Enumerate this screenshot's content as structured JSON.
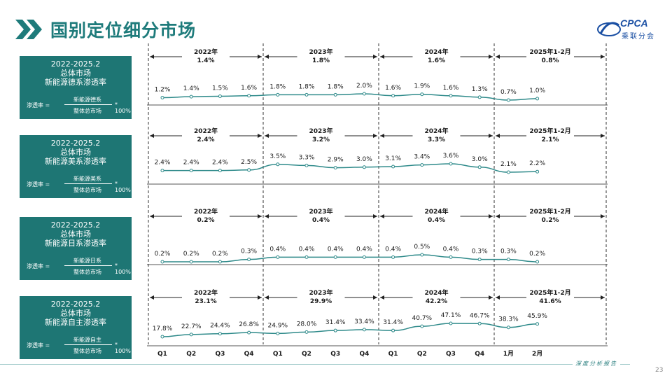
{
  "header": {
    "title": "国别定位细分市场",
    "logo_text": "CPCA",
    "logo_sub": "乘联分会"
  },
  "footer": {
    "text": "深度分析报告",
    "page_number": "23"
  },
  "colors": {
    "accent": "#1e7674",
    "line": "#2e8a8a",
    "text": "#1a1a1a"
  },
  "chart_data": {
    "type": "line",
    "categories": [
      "Q1",
      "Q2",
      "Q3",
      "Q4",
      "Q1",
      "Q2",
      "Q3",
      "Q4",
      "Q1",
      "Q2",
      "Q3",
      "Q4",
      "1月",
      "2月"
    ],
    "period_labels": [
      "2022年",
      "2023年",
      "2024年",
      "2025年1-2月"
    ],
    "panels": [
      {
        "box_lines": [
          "2022-2025.2",
          "总体市场",
          "新能源德系渗透率"
        ],
        "formula": {
          "lhs": "渗透率 =",
          "numerator": "新能源德系",
          "denominator": "整体总市场",
          "mult": "* 100%"
        },
        "period_values": [
          "1.4%",
          "1.8%",
          "1.6%",
          "0.8%"
        ],
        "values": [
          1.2,
          1.4,
          1.5,
          1.6,
          1.8,
          1.8,
          1.8,
          2.0,
          1.6,
          1.9,
          1.6,
          1.3,
          0.7,
          1.0
        ],
        "labels": [
          "1.2%",
          "1.4%",
          "1.5%",
          "1.6%",
          "1.8%",
          "1.8%",
          "1.8%",
          "2.0%",
          "1.6%",
          "1.9%",
          "1.6%",
          "1.3%",
          "0.7%",
          "1.0%"
        ]
      },
      {
        "box_lines": [
          "2022-2025.2",
          "总体市场",
          "新能源美系渗透率"
        ],
        "formula": {
          "lhs": "渗透率 =",
          "numerator": "新能源美系",
          "denominator": "整体总市场",
          "mult": "* 100%"
        },
        "period_values": [
          "2.4%",
          "3.2%",
          "3.3%",
          "2.1%"
        ],
        "values": [
          2.4,
          2.4,
          2.4,
          2.5,
          3.5,
          3.3,
          2.9,
          3.0,
          3.1,
          3.4,
          3.6,
          3.0,
          2.1,
          2.2
        ],
        "labels": [
          "2.4%",
          "2.4%",
          "2.4%",
          "2.5%",
          "3.5%",
          "3.3%",
          "2.9%",
          "3.0%",
          "3.1%",
          "3.4%",
          "3.6%",
          "3.0%",
          "2.1%",
          "2.2%"
        ]
      },
      {
        "box_lines": [
          "2022-2025.2",
          "总体市场",
          "新能源日系渗透率"
        ],
        "formula": {
          "lhs": "渗透率 =",
          "numerator": "新能源日系",
          "denominator": "整体总市场",
          "mult": "* 100%"
        },
        "period_values": [
          "0.2%",
          "0.4%",
          "0.4%",
          "0.2%"
        ],
        "values": [
          0.2,
          0.2,
          0.2,
          0.3,
          0.4,
          0.4,
          0.4,
          0.4,
          0.4,
          0.5,
          0.4,
          0.3,
          0.3,
          0.2
        ],
        "labels": [
          "0.2%",
          "0.2%",
          "0.2%",
          "0.3%",
          "0.4%",
          "0.4%",
          "0.4%",
          "0.4%",
          "0.4%",
          "0.5%",
          "0.4%",
          "0.3%",
          "0.3%",
          "0.2%"
        ]
      },
      {
        "box_lines": [
          "2022-2025.2",
          "总体市场",
          "新能源自主渗透率"
        ],
        "formula": {
          "lhs": "渗透率 =",
          "numerator": "新能源自主",
          "denominator": "整体总市场",
          "mult": "* 100%"
        },
        "period_values": [
          "23.1%",
          "29.9%",
          "42.2%",
          "41.6%"
        ],
        "values": [
          17.8,
          22.7,
          24.4,
          26.8,
          24.9,
          28.0,
          31.4,
          33.4,
          31.4,
          40.7,
          47.1,
          46.7,
          38.3,
          45.9
        ],
        "labels": [
          "17.8%",
          "22.7%",
          "24.4%",
          "26.8%",
          "24.9%",
          "28.0%",
          "31.4%",
          "33.4%",
          "31.4%",
          "40.7%",
          "47.1%",
          "46.7%",
          "38.3%",
          "45.9%"
        ]
      }
    ]
  }
}
